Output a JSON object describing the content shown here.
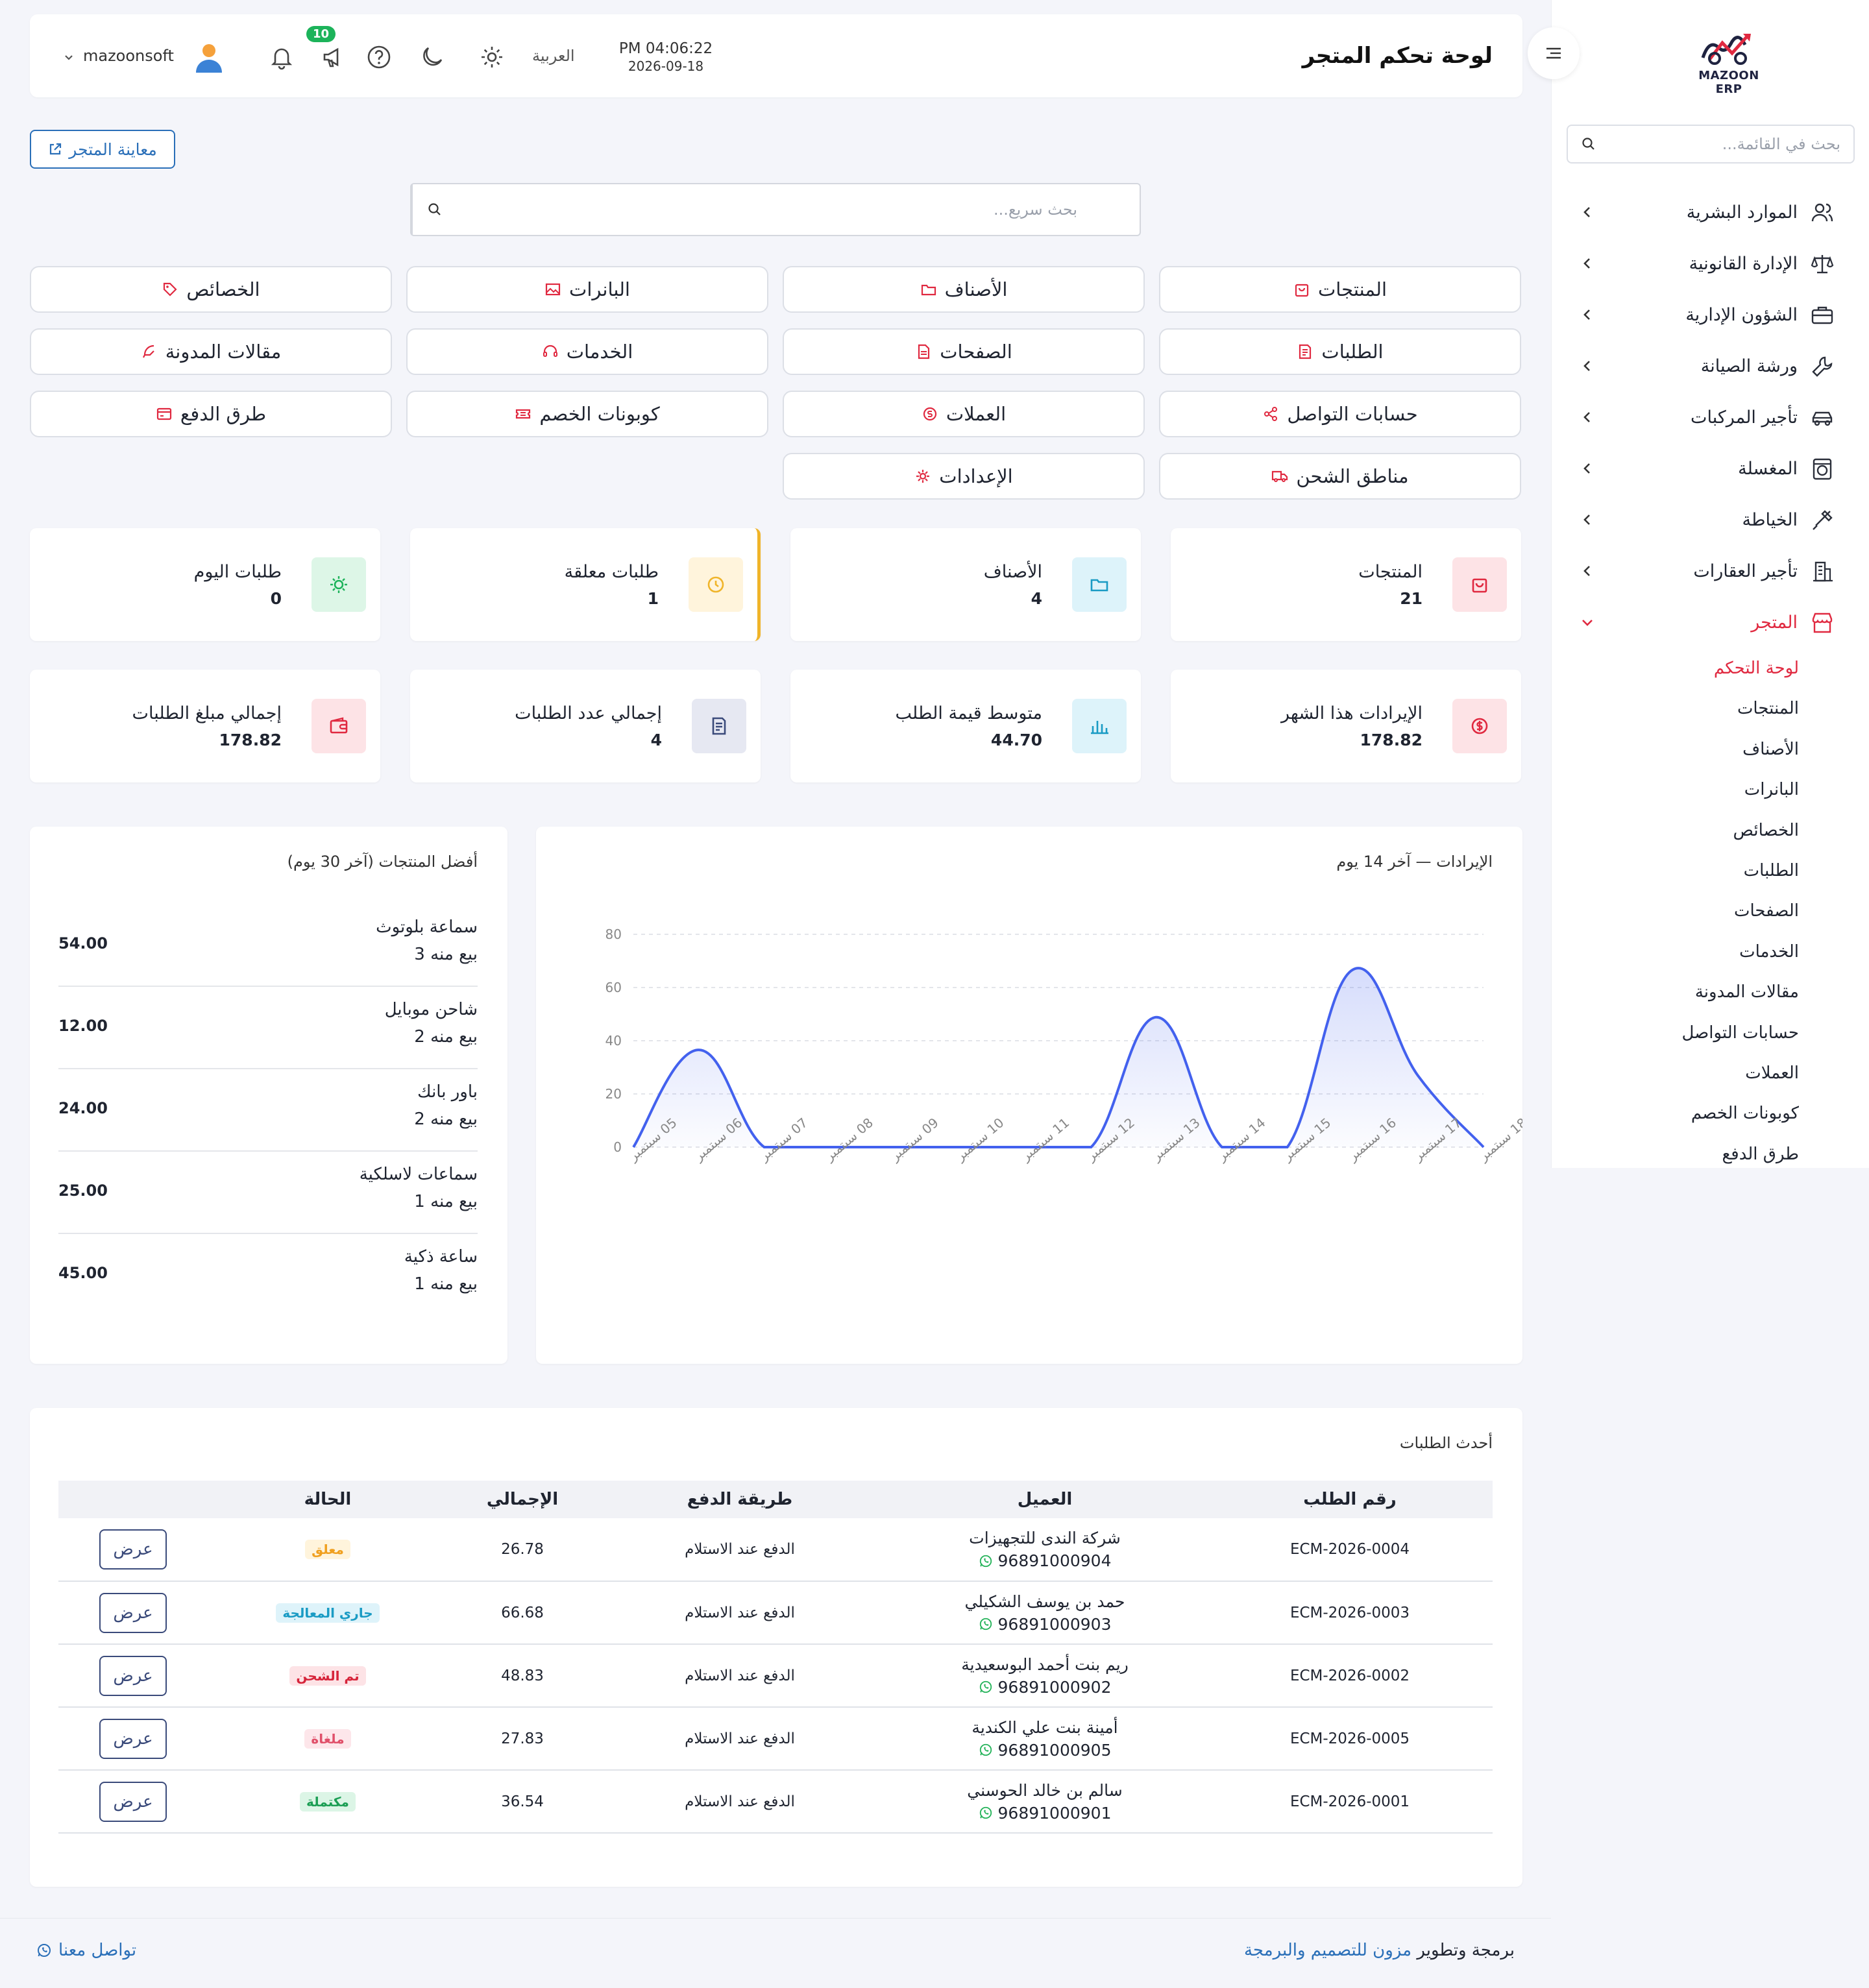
{
  "sidebar": {
    "logo_text": "MAZOON ERP",
    "search_placeholder": "بحث في القائمة...",
    "items": [
      {
        "label": "الموارد البشرية",
        "icon": "users-icon"
      },
      {
        "label": "الإدارة القانونية",
        "icon": "scale-icon"
      },
      {
        "label": "الشؤون الإدارية",
        "icon": "briefcase-icon"
      },
      {
        "label": "ورشة الصيانة",
        "icon": "wrench-icon"
      },
      {
        "label": "تأجير المركبات",
        "icon": "car-icon"
      },
      {
        "label": "المغسلة",
        "icon": "washer-icon"
      },
      {
        "label": "الخياطة",
        "icon": "sewing-icon"
      },
      {
        "label": "تأجير العقارات",
        "icon": "building-icon"
      },
      {
        "label": "المتجر",
        "icon": "store-icon"
      }
    ],
    "sub_items": [
      "لوحة التحكم",
      "المنتجات",
      "الأصناف",
      "البانرات",
      "الخصائص",
      "الطلبات",
      "الصفحات",
      "الخدمات",
      "مقالات المدونة",
      "حسابات التواصل",
      "العملات",
      "كوبونات الخصم",
      "طرق الدفع"
    ]
  },
  "header": {
    "title": "لوحة تحكم المتجر",
    "time": "PM 04:06:22",
    "date": "2026-09-18",
    "language": "العربية",
    "announcements_count": "10",
    "user_name": "mazoonsoft"
  },
  "preview_button": "معاينة المتجر",
  "quick_search_placeholder": "بحث سريع...",
  "quick_links": [
    "المنتجات",
    "الأصناف",
    "البانرات",
    "الخصائص",
    "الطلبات",
    "الصفحات",
    "الخدمات",
    "مقالات المدونة",
    "حسابات التواصل",
    "العملات",
    "كوبونات الخصم",
    "طرق الدفع",
    "مناطق الشحن",
    "الإعدادات"
  ],
  "stats": [
    {
      "label": "المنتجات",
      "value": "21"
    },
    {
      "label": "الأصناف",
      "value": "4"
    },
    {
      "label": "طلبات معلقة",
      "value": "1"
    },
    {
      "label": "طلبات اليوم",
      "value": "0"
    },
    {
      "label": "الإيرادات هذا الشهر",
      "value": "178.82"
    },
    {
      "label": "متوسط قيمة الطلب",
      "value": "44.70"
    },
    {
      "label": "إجمالي عدد الطلبات",
      "value": "4"
    },
    {
      "label": "إجمالي مبلغ الطلبات",
      "value": "178.82"
    }
  ],
  "revenue_panel_title": "الإيرادات — آخر 14 يوم",
  "chart_data": {
    "type": "area",
    "title": "الإيرادات — آخر 14 يوم",
    "categories": [
      "05 سبتمبر",
      "06 سبتمبر",
      "07 سبتمبر",
      "08 سبتمبر",
      "09 سبتمبر",
      "10 سبتمبر",
      "11 سبتمبر",
      "12 سبتمبر",
      "13 سبتمبر",
      "14 سبتمبر",
      "15 سبتمبر",
      "16 سبتمبر",
      "17 سبتمبر",
      "18 سبتمبر"
    ],
    "values": [
      0,
      36.54,
      0,
      0,
      0,
      0,
      0,
      0,
      48.83,
      0,
      0,
      66.68,
      26.78,
      0
    ],
    "ylim": [
      0,
      80
    ],
    "yticks": [
      0,
      20,
      40,
      60,
      80
    ],
    "grid": true,
    "color": "#4361ee"
  },
  "top_products": {
    "title": "أفضل المنتجات (آخر 30 يوم)",
    "items": [
      {
        "name": "سماعة بلوتوث",
        "sold": "بيع منه 3",
        "value": "54.00"
      },
      {
        "name": "شاحن موبايل",
        "sold": "بيع منه 2",
        "value": "12.00"
      },
      {
        "name": "باور بانك",
        "sold": "بيع منه 2",
        "value": "24.00"
      },
      {
        "name": "سماعات لاسلكية",
        "sold": "بيع منه 1",
        "value": "25.00"
      },
      {
        "name": "ساعة ذكية",
        "sold": "بيع منه 1",
        "value": "45.00"
      }
    ]
  },
  "orders": {
    "title": "أحدث الطلبات",
    "columns": [
      "رقم الطلب",
      "العميل",
      "طريقة الدفع",
      "الإجمالي",
      "الحالة",
      ""
    ],
    "view_label": "عرض",
    "rows": [
      {
        "id": "ECM-2026-0004",
        "customer": "شركة الندى للتجهيزات",
        "phone": "96891000904",
        "payment": "الدفع عند الاستلام",
        "total": "26.78",
        "status": "معلق",
        "status_color": "#f0a020",
        "status_bg": "#fff4dc"
      },
      {
        "id": "ECM-2026-0003",
        "customer": "حمد بن يوسف الشكيلي",
        "phone": "96891000903",
        "payment": "الدفع عند الاستلام",
        "total": "66.68",
        "status": "جاري المعالجة",
        "status_color": "#1a9bc4",
        "status_bg": "#def3fa"
      },
      {
        "id": "ECM-2026-0002",
        "customer": "ريم بنت أحمد البوسعيدية",
        "phone": "96891000902",
        "payment": "الدفع عند الاستلام",
        "total": "48.83",
        "status": "تم الشحن",
        "status_color": "#d6243a",
        "status_bg": "#fde3e6"
      },
      {
        "id": "ECM-2026-0005",
        "customer": "أمينة بنت علي الكندية",
        "phone": "96891000905",
        "payment": "الدفع عند الاستلام",
        "total": "27.83",
        "status": "ملغاة",
        "status_color": "#e0506a",
        "status_bg": "#fde6ea"
      },
      {
        "id": "ECM-2026-0001",
        "customer": "سالم بن خالد الحوسني",
        "phone": "96891000901",
        "payment": "الدفع عند الاستلام",
        "total": "36.54",
        "status": "مكتملة",
        "status_color": "#1c9e54",
        "status_bg": "#dcf5e6"
      }
    ]
  },
  "footer": {
    "prefix": "برمجة وتطوير",
    "company": "مزون للتصميم والبرمجة",
    "contact": "تواصل معنا"
  },
  "colors": {
    "accent": "#e02940",
    "primary_blue": "#2a6fb8",
    "chart_line": "#4361ee"
  }
}
